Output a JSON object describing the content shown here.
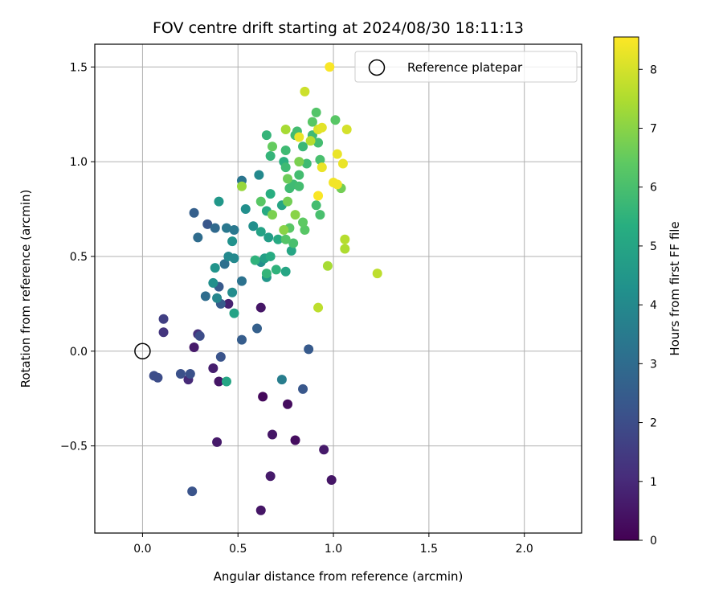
{
  "chart_data": {
    "type": "scatter",
    "title": "FOV centre drift starting at 2024/08/30 18:11:13",
    "xlabel": "Angular distance from reference (arcmin)",
    "ylabel": "Rotation from reference (arcmin)",
    "xlim": [
      -0.25,
      2.3
    ],
    "ylim": [
      -0.96,
      1.62
    ],
    "xticks": [
      0.0,
      0.5,
      1.0,
      1.5,
      2.0
    ],
    "xtick_labels": [
      "0.0",
      "0.5",
      "1.0",
      "1.5",
      "2.0"
    ],
    "yticks": [
      -0.5,
      0.0,
      0.5,
      1.0,
      1.5
    ],
    "ytick_labels": [
      "−0.5",
      "0.0",
      "0.5",
      "1.0",
      "1.5"
    ],
    "grid": true,
    "legend": {
      "placement": "top-right",
      "entries": [
        "Reference platepar"
      ]
    },
    "reference_point": {
      "x": 0.0,
      "y": 0.0
    },
    "colorbar": {
      "label": "Hours from first FF file",
      "colormap": "viridis",
      "range": [
        0,
        8.55
      ],
      "ticks": [
        0,
        1,
        2,
        3,
        4,
        5,
        6,
        7,
        8
      ],
      "tick_labels": [
        "0",
        "1",
        "2",
        "3",
        "4",
        "5",
        "6",
        "7",
        "8"
      ]
    },
    "points": [
      {
        "x": 0.62,
        "y": -0.84,
        "c": 0.5
      },
      {
        "x": 0.67,
        "y": -0.66,
        "c": 0.6
      },
      {
        "x": 0.99,
        "y": -0.68,
        "c": 0.5
      },
      {
        "x": 0.95,
        "y": -0.52,
        "c": 0.6
      },
      {
        "x": 0.8,
        "y": -0.47,
        "c": 0.3
      },
      {
        "x": 0.68,
        "y": -0.44,
        "c": 0.5
      },
      {
        "x": 0.39,
        "y": -0.48,
        "c": 0.6
      },
      {
        "x": 0.76,
        "y": -0.28,
        "c": 0.3
      },
      {
        "x": 0.63,
        "y": -0.24,
        "c": 0.2
      },
      {
        "x": 0.62,
        "y": 0.23,
        "c": 0.5
      },
      {
        "x": 0.27,
        "y": 0.02,
        "c": 0.6
      },
      {
        "x": 0.4,
        "y": -0.16,
        "c": 0.5
      },
      {
        "x": 0.37,
        "y": -0.09,
        "c": 0.7
      },
      {
        "x": 0.45,
        "y": 0.25,
        "c": 0.8
      },
      {
        "x": 0.24,
        "y": -0.15,
        "c": 1.0
      },
      {
        "x": 0.29,
        "y": 0.09,
        "c": 1.2
      },
      {
        "x": 0.11,
        "y": 0.1,
        "c": 1.3
      },
      {
        "x": 0.11,
        "y": 0.17,
        "c": 1.6
      },
      {
        "x": 0.06,
        "y": -0.13,
        "c": 2.0
      },
      {
        "x": 0.08,
        "y": -0.14,
        "c": 2.0
      },
      {
        "x": 0.2,
        "y": -0.12,
        "c": 2.1
      },
      {
        "x": 0.25,
        "y": -0.12,
        "c": 2.1
      },
      {
        "x": 0.26,
        "y": -0.74,
        "c": 2.2
      },
      {
        "x": 0.3,
        "y": 0.08,
        "c": 2.0
      },
      {
        "x": 0.41,
        "y": -0.03,
        "c": 2.2
      },
      {
        "x": 0.84,
        "y": -0.2,
        "c": 2.3
      },
      {
        "x": 0.87,
        "y": 0.01,
        "c": 2.4
      },
      {
        "x": 0.52,
        "y": 0.06,
        "c": 2.5
      },
      {
        "x": 0.6,
        "y": 0.12,
        "c": 2.6
      },
      {
        "x": 0.41,
        "y": 0.25,
        "c": 2.5
      },
      {
        "x": 0.4,
        "y": 0.34,
        "c": 2.4
      },
      {
        "x": 0.34,
        "y": 0.67,
        "c": 2.3
      },
      {
        "x": 0.27,
        "y": 0.73,
        "c": 2.6
      },
      {
        "x": 0.29,
        "y": 0.6,
        "c": 3.0
      },
      {
        "x": 0.38,
        "y": 0.65,
        "c": 2.9
      },
      {
        "x": 0.33,
        "y": 0.29,
        "c": 3.0
      },
      {
        "x": 0.43,
        "y": 0.46,
        "c": 3.1
      },
      {
        "x": 0.52,
        "y": 0.37,
        "c": 3.2
      },
      {
        "x": 0.52,
        "y": 0.9,
        "c": 3.3
      },
      {
        "x": 0.48,
        "y": 0.64,
        "c": 3.4
      },
      {
        "x": 0.44,
        "y": 0.65,
        "c": 3.4
      },
      {
        "x": 0.61,
        "y": 0.93,
        "c": 4.0
      },
      {
        "x": 0.73,
        "y": -0.15,
        "c": 3.6
      },
      {
        "x": 0.37,
        "y": 0.36,
        "c": 4.2
      },
      {
        "x": 0.39,
        "y": 0.28,
        "c": 3.9
      },
      {
        "x": 0.47,
        "y": 0.31,
        "c": 4.1
      },
      {
        "x": 0.48,
        "y": 0.49,
        "c": 4.0
      },
      {
        "x": 0.45,
        "y": 0.5,
        "c": 4.0
      },
      {
        "x": 0.62,
        "y": 0.47,
        "c": 4.2
      },
      {
        "x": 0.65,
        "y": 0.39,
        "c": 4.5
      },
      {
        "x": 0.58,
        "y": 0.66,
        "c": 4.2
      },
      {
        "x": 0.54,
        "y": 0.75,
        "c": 4.2
      },
      {
        "x": 0.47,
        "y": 0.58,
        "c": 4.3
      },
      {
        "x": 0.38,
        "y": 0.44,
        "c": 4.4
      },
      {
        "x": 0.4,
        "y": 0.79,
        "c": 4.5
      },
      {
        "x": 0.48,
        "y": 0.2,
        "c": 4.9
      },
      {
        "x": 0.44,
        "y": -0.16,
        "c": 5.0
      },
      {
        "x": 0.64,
        "y": 0.49,
        "c": 4.8
      },
      {
        "x": 0.66,
        "y": 0.6,
        "c": 4.7
      },
      {
        "x": 0.62,
        "y": 0.63,
        "c": 4.9
      },
      {
        "x": 0.65,
        "y": 0.74,
        "c": 5.2
      },
      {
        "x": 0.73,
        "y": 0.77,
        "c": 5.0
      },
      {
        "x": 0.75,
        "y": 0.42,
        "c": 5.0
      },
      {
        "x": 0.67,
        "y": 0.5,
        "c": 5.2
      },
      {
        "x": 0.71,
        "y": 0.59,
        "c": 5.2
      },
      {
        "x": 0.78,
        "y": 0.53,
        "c": 5.0
      },
      {
        "x": 0.59,
        "y": 0.48,
        "c": 5.5
      },
      {
        "x": 0.65,
        "y": 0.41,
        "c": 5.6
      },
      {
        "x": 0.7,
        "y": 0.43,
        "c": 5.5
      },
      {
        "x": 0.67,
        "y": 0.83,
        "c": 5.3
      },
      {
        "x": 0.67,
        "y": 1.03,
        "c": 5.6
      },
      {
        "x": 0.65,
        "y": 1.14,
        "c": 5.6
      },
      {
        "x": 0.74,
        "y": 1.0,
        "c": 5.4
      },
      {
        "x": 0.75,
        "y": 1.06,
        "c": 5.8
      },
      {
        "x": 0.75,
        "y": 0.97,
        "c": 5.8
      },
      {
        "x": 0.77,
        "y": 0.86,
        "c": 5.8
      },
      {
        "x": 0.79,
        "y": 0.88,
        "c": 5.8
      },
      {
        "x": 0.8,
        "y": 1.14,
        "c": 5.8
      },
      {
        "x": 0.81,
        "y": 1.16,
        "c": 5.9
      },
      {
        "x": 0.82,
        "y": 0.93,
        "c": 5.9
      },
      {
        "x": 0.82,
        "y": 0.87,
        "c": 5.9
      },
      {
        "x": 0.84,
        "y": 1.08,
        "c": 5.7
      },
      {
        "x": 0.86,
        "y": 0.99,
        "c": 5.8
      },
      {
        "x": 0.89,
        "y": 1.14,
        "c": 5.8
      },
      {
        "x": 0.92,
        "y": 1.1,
        "c": 5.9
      },
      {
        "x": 0.91,
        "y": 0.77,
        "c": 5.9
      },
      {
        "x": 0.93,
        "y": 1.01,
        "c": 6.0
      },
      {
        "x": 0.93,
        "y": 0.72,
        "c": 6.0
      },
      {
        "x": 0.79,
        "y": 0.57,
        "c": 6.0
      },
      {
        "x": 0.75,
        "y": 0.59,
        "c": 6.2
      },
      {
        "x": 0.77,
        "y": 0.65,
        "c": 6.3
      },
      {
        "x": 0.85,
        "y": 0.64,
        "c": 6.3
      },
      {
        "x": 0.84,
        "y": 0.68,
        "c": 6.4
      },
      {
        "x": 0.76,
        "y": 0.79,
        "c": 6.7
      },
      {
        "x": 0.76,
        "y": 0.91,
        "c": 6.6
      },
      {
        "x": 0.82,
        "y": 1.0,
        "c": 6.8
      },
      {
        "x": 0.89,
        "y": 1.21,
        "c": 6.3
      },
      {
        "x": 0.91,
        "y": 1.26,
        "c": 6.2
      },
      {
        "x": 1.01,
        "y": 1.22,
        "c": 6.3
      },
      {
        "x": 1.04,
        "y": 0.86,
        "c": 6.7
      },
      {
        "x": 0.68,
        "y": 1.08,
        "c": 6.5
      },
      {
        "x": 0.62,
        "y": 0.79,
        "c": 6.3
      },
      {
        "x": 0.68,
        "y": 0.72,
        "c": 6.8
      },
      {
        "x": 0.74,
        "y": 0.64,
        "c": 7.0
      },
      {
        "x": 0.8,
        "y": 0.72,
        "c": 7.0
      },
      {
        "x": 0.52,
        "y": 0.87,
        "c": 7.2
      },
      {
        "x": 0.75,
        "y": 1.17,
        "c": 7.4
      },
      {
        "x": 0.97,
        "y": 0.45,
        "c": 7.4
      },
      {
        "x": 1.06,
        "y": 0.54,
        "c": 7.5
      },
      {
        "x": 1.06,
        "y": 0.59,
        "c": 7.6
      },
      {
        "x": 0.92,
        "y": 0.23,
        "c": 7.7
      },
      {
        "x": 1.23,
        "y": 0.41,
        "c": 7.7
      },
      {
        "x": 0.88,
        "y": 1.11,
        "c": 7.6
      },
      {
        "x": 0.85,
        "y": 1.37,
        "c": 7.9
      },
      {
        "x": 0.92,
        "y": 1.17,
        "c": 8.1
      },
      {
        "x": 0.94,
        "y": 1.18,
        "c": 8.2
      },
      {
        "x": 0.82,
        "y": 1.13,
        "c": 8.3
      },
      {
        "x": 0.94,
        "y": 0.97,
        "c": 8.3
      },
      {
        "x": 0.98,
        "y": 1.5,
        "c": 8.5
      },
      {
        "x": 1.02,
        "y": 1.04,
        "c": 8.3
      },
      {
        "x": 1.05,
        "y": 0.99,
        "c": 8.3
      },
      {
        "x": 1.07,
        "y": 1.17,
        "c": 8.0
      },
      {
        "x": 1.0,
        "y": 0.89,
        "c": 8.4
      },
      {
        "x": 1.02,
        "y": 0.88,
        "c": 8.4
      },
      {
        "x": 0.92,
        "y": 0.82,
        "c": 8.5
      }
    ]
  }
}
